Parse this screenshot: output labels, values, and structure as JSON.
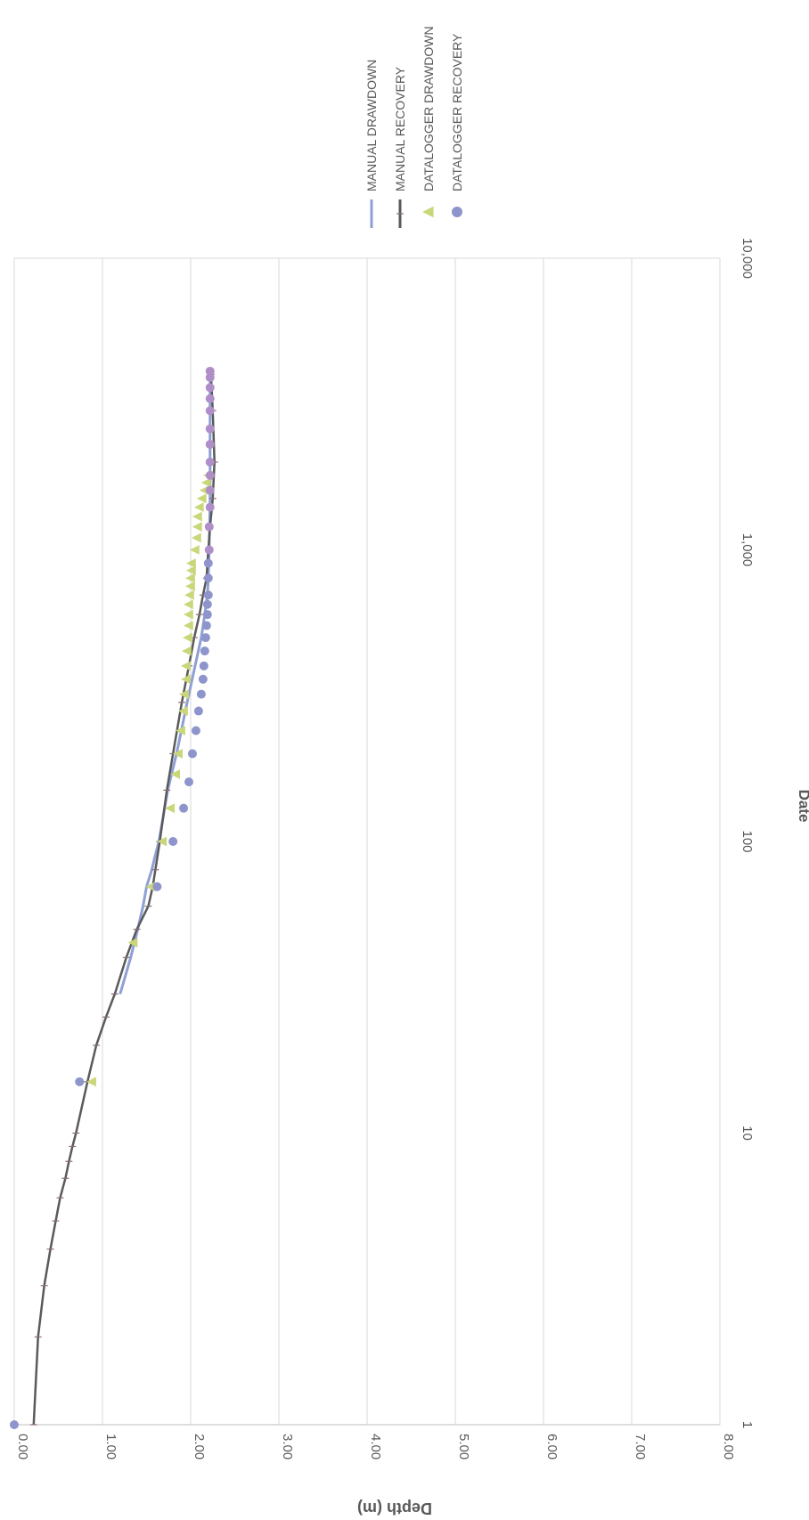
{
  "chart_data": {
    "type": "line",
    "title": "",
    "xlabel": "Date",
    "ylabel": "Depth (m)",
    "x_scale": "log",
    "xlim": [
      1,
      10000
    ],
    "ylim": [
      0,
      8
    ],
    "y_inverted": true,
    "grid": true,
    "legend": "top-right",
    "x_ticks": [
      "1",
      "10",
      "100",
      "1,000",
      "10,000"
    ],
    "y_ticks": [
      "0.00",
      "1.00",
      "2.00",
      "3.00",
      "4.00",
      "5.00",
      "6.00",
      "7.00",
      "8.00"
    ],
    "series": [
      {
        "name": "MANUAL DRAWDOWN",
        "style": "line",
        "color": "#8ea0d4",
        "points": [
          [
            30,
            1.2
          ],
          [
            40,
            1.32
          ],
          [
            50,
            1.4
          ],
          [
            60,
            1.46
          ],
          [
            70,
            1.5
          ],
          [
            80,
            1.56
          ],
          [
            90,
            1.6
          ],
          [
            100,
            1.64
          ],
          [
            150,
            1.74
          ],
          [
            200,
            1.84
          ],
          [
            300,
            1.96
          ],
          [
            400,
            2.05
          ],
          [
            500,
            2.12
          ],
          [
            600,
            2.16
          ],
          [
            700,
            2.19
          ],
          [
            800,
            2.2
          ],
          [
            1000,
            2.21
          ],
          [
            1500,
            2.22
          ],
          [
            2000,
            2.22
          ],
          [
            3000,
            2.22
          ],
          [
            4000,
            2.22
          ]
        ]
      },
      {
        "name": "MANUAL RECOVERY",
        "style": "line-markers",
        "color": "#5a5a5a",
        "points": [
          [
            1,
            0.22
          ],
          [
            2,
            0.27
          ],
          [
            3,
            0.34
          ],
          [
            4,
            0.41
          ],
          [
            5,
            0.47
          ],
          [
            6,
            0.52
          ],
          [
            7,
            0.58
          ],
          [
            8,
            0.62
          ],
          [
            9,
            0.66
          ],
          [
            10,
            0.7
          ],
          [
            15,
            0.83
          ],
          [
            20,
            0.93
          ],
          [
            25,
            1.04
          ],
          [
            30,
            1.14
          ],
          [
            40,
            1.27
          ],
          [
            50,
            1.39
          ],
          [
            60,
            1.52
          ],
          [
            70,
            1.57
          ],
          [
            80,
            1.6
          ],
          [
            100,
            1.65
          ],
          [
            150,
            1.73
          ],
          [
            200,
            1.8
          ],
          [
            300,
            1.9
          ],
          [
            400,
            1.98
          ],
          [
            500,
            2.04
          ],
          [
            600,
            2.1
          ],
          [
            700,
            2.14
          ],
          [
            800,
            2.18
          ],
          [
            1000,
            2.2
          ],
          [
            1200,
            2.22
          ],
          [
            1500,
            2.25
          ],
          [
            2000,
            2.27
          ],
          [
            3000,
            2.25
          ],
          [
            4000,
            2.23
          ]
        ]
      },
      {
        "name": "DATALOGGER DRAWDOWN",
        "style": "marker-triangle",
        "color": "#c9d77a",
        "points": [
          [
            15,
            0.88
          ],
          [
            45,
            1.35
          ],
          [
            70,
            1.55
          ],
          [
            100,
            1.68
          ],
          [
            130,
            1.77
          ],
          [
            170,
            1.83
          ],
          [
            200,
            1.86
          ],
          [
            240,
            1.89
          ],
          [
            280,
            1.92
          ],
          [
            320,
            1.93
          ],
          [
            360,
            1.95
          ],
          [
            400,
            1.95
          ],
          [
            450,
            1.96
          ],
          [
            500,
            1.97
          ],
          [
            550,
            1.98
          ],
          [
            600,
            1.98
          ],
          [
            650,
            1.98
          ],
          [
            700,
            1.99
          ],
          [
            750,
            2.0
          ],
          [
            800,
            2.0
          ],
          [
            850,
            2.01
          ],
          [
            900,
            2.01
          ],
          [
            1000,
            2.05
          ],
          [
            1100,
            2.07
          ],
          [
            1200,
            2.08
          ],
          [
            1300,
            2.08
          ],
          [
            1400,
            2.1
          ],
          [
            1500,
            2.13
          ],
          [
            1600,
            2.16
          ],
          [
            1700,
            2.18
          ],
          [
            1800,
            2.2
          ]
        ]
      },
      {
        "name": "DATALOGGER RECOVERY",
        "style": "marker-circle",
        "color": "#8e95cc",
        "points": [
          [
            1,
            0.0
          ],
          [
            15,
            0.74
          ],
          [
            70,
            1.62
          ],
          [
            100,
            1.8
          ],
          [
            130,
            1.92
          ],
          [
            160,
            1.98
          ],
          [
            200,
            2.02
          ],
          [
            240,
            2.06
          ],
          [
            280,
            2.09
          ],
          [
            320,
            2.12
          ],
          [
            360,
            2.14
          ],
          [
            400,
            2.15
          ],
          [
            450,
            2.16
          ],
          [
            500,
            2.17
          ],
          [
            550,
            2.18
          ],
          [
            600,
            2.19
          ],
          [
            650,
            2.19
          ],
          [
            700,
            2.2
          ],
          [
            800,
            2.2
          ],
          [
            900,
            2.2
          ],
          [
            1000,
            2.21
          ],
          [
            1200,
            2.21
          ],
          [
            1400,
            2.22
          ],
          [
            1600,
            2.22
          ],
          [
            1800,
            2.22
          ],
          [
            2000,
            2.22
          ],
          [
            2300,
            2.22
          ],
          [
            2600,
            2.22
          ],
          [
            3000,
            2.22
          ],
          [
            3300,
            2.22
          ],
          [
            3600,
            2.22
          ],
          [
            3900,
            2.22
          ],
          [
            4100,
            2.22
          ]
        ]
      }
    ]
  }
}
